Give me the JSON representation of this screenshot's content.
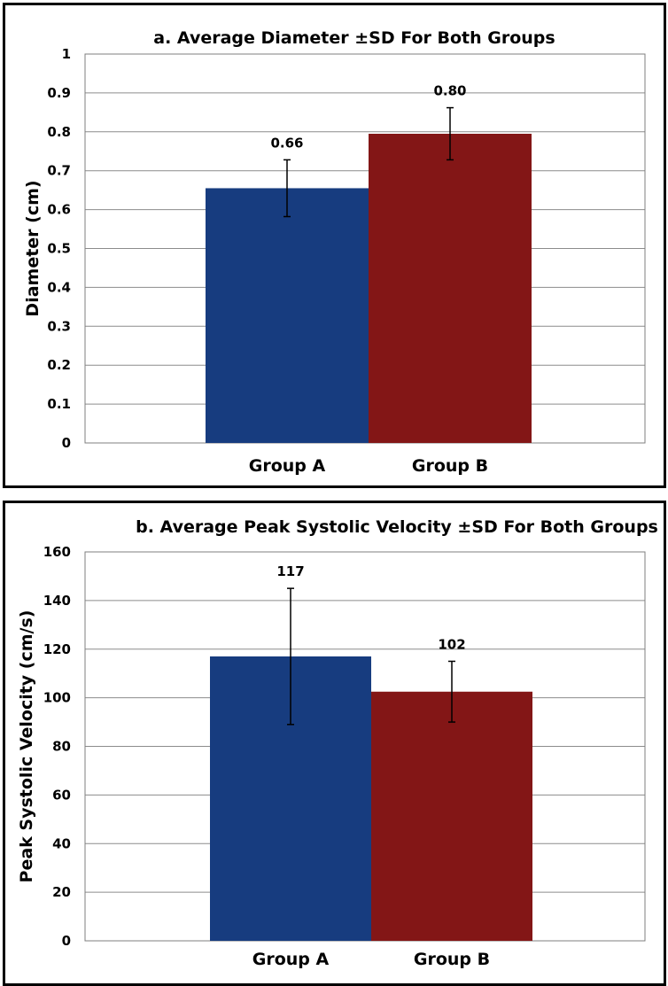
{
  "chart_data": [
    {
      "type": "bar",
      "title": "a. Average Diameter ±SD For Both Groups",
      "xlabel": "",
      "ylabel": "Diameter (cm)",
      "ylim": [
        0,
        1
      ],
      "yticks": [
        0,
        0.1,
        0.2,
        0.3,
        0.4,
        0.5,
        0.6,
        0.7,
        0.8,
        0.9,
        1
      ],
      "ytick_labels": [
        "0",
        "0.1",
        "0.2",
        "0.3",
        "0.4",
        "0.5",
        "0.6",
        "0.7",
        "0.8",
        "0.9",
        "1"
      ],
      "categories": [
        "Group A",
        "Group B"
      ],
      "values": [
        0.655,
        0.795
      ],
      "sd": [
        0.073,
        0.067
      ],
      "data_labels": [
        "0.66",
        "0.80"
      ],
      "colors": [
        "#173c7f",
        "#831616"
      ],
      "grid": true,
      "legend": "none"
    },
    {
      "type": "bar",
      "title": "b. Average Peak Systolic Velocity ±SD For Both Groups",
      "xlabel": "",
      "ylabel": "Peak Systolic Velocity (cm/s)",
      "ylim": [
        0,
        160
      ],
      "yticks": [
        0,
        20,
        40,
        60,
        80,
        100,
        120,
        140,
        160
      ],
      "ytick_labels": [
        "0",
        "20",
        "40",
        "60",
        "80",
        "100",
        "120",
        "140",
        "160"
      ],
      "categories": [
        "Group A",
        "Group B"
      ],
      "values": [
        117,
        102.5
      ],
      "sd": [
        28,
        12.5
      ],
      "data_labels": [
        "117",
        "102"
      ],
      "colors": [
        "#173c7f",
        "#831616"
      ],
      "grid": true,
      "legend": "none"
    }
  ]
}
